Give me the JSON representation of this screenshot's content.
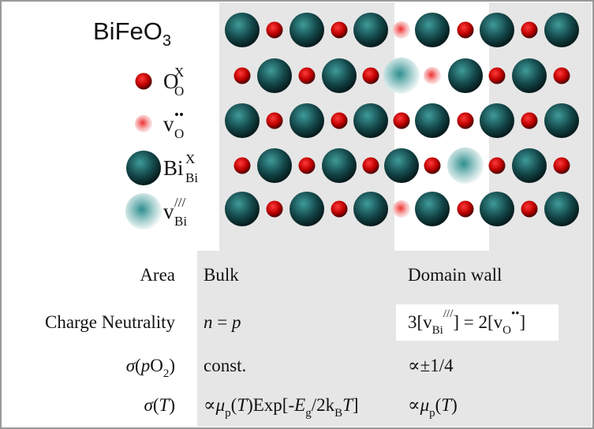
{
  "title": {
    "base": "BiFeO",
    "sub": "3"
  },
  "legend": [
    {
      "base": "O",
      "sup": "X",
      "sub": "O"
    },
    {
      "base": "v",
      "sup": "••",
      "sub": "O"
    },
    {
      "base": "Bi",
      "sup": "X",
      "sub": "Bi"
    },
    {
      "base": "v",
      "sup": "///",
      "sub": "Bi"
    }
  ],
  "table": {
    "rows": [
      [
        [
          "Area"
        ],
        [
          "Bulk"
        ],
        [
          "Domain wall"
        ]
      ],
      [
        [
          "Charge Neutrality"
        ],
        [
          {
            "i": "n"
          },
          " = ",
          {
            "i": "p"
          }
        ],
        [
          "3[v",
          {
            "sub": "Bi"
          },
          {
            "sup": "///"
          },
          "] = 2[v",
          {
            "sub": "O"
          },
          {
            "sup": "••"
          },
          "]"
        ]
      ],
      [
        [
          {
            "i": "σ"
          },
          "(",
          {
            "i": "p"
          },
          "O",
          {
            "sub": "2"
          },
          ")"
        ],
        [
          "const."
        ],
        [
          "∝±1/4"
        ]
      ],
      [
        [
          {
            "i": "σ"
          },
          "(",
          {
            "i": "T"
          },
          ")"
        ],
        [
          "∝",
          {
            "i": "μ"
          },
          {
            "sub": "p"
          },
          "(",
          {
            "i": "T"
          },
          ")Exp[-",
          {
            "i": "E"
          },
          {
            "sub": "g"
          },
          "/2k",
          {
            "sub": "B"
          },
          {
            "i": "T"
          },
          "]"
        ],
        [
          "∝",
          {
            "i": "μ"
          },
          {
            "sub": "p"
          },
          "(",
          {
            "i": "T"
          },
          ")"
        ]
      ]
    ]
  }
}
